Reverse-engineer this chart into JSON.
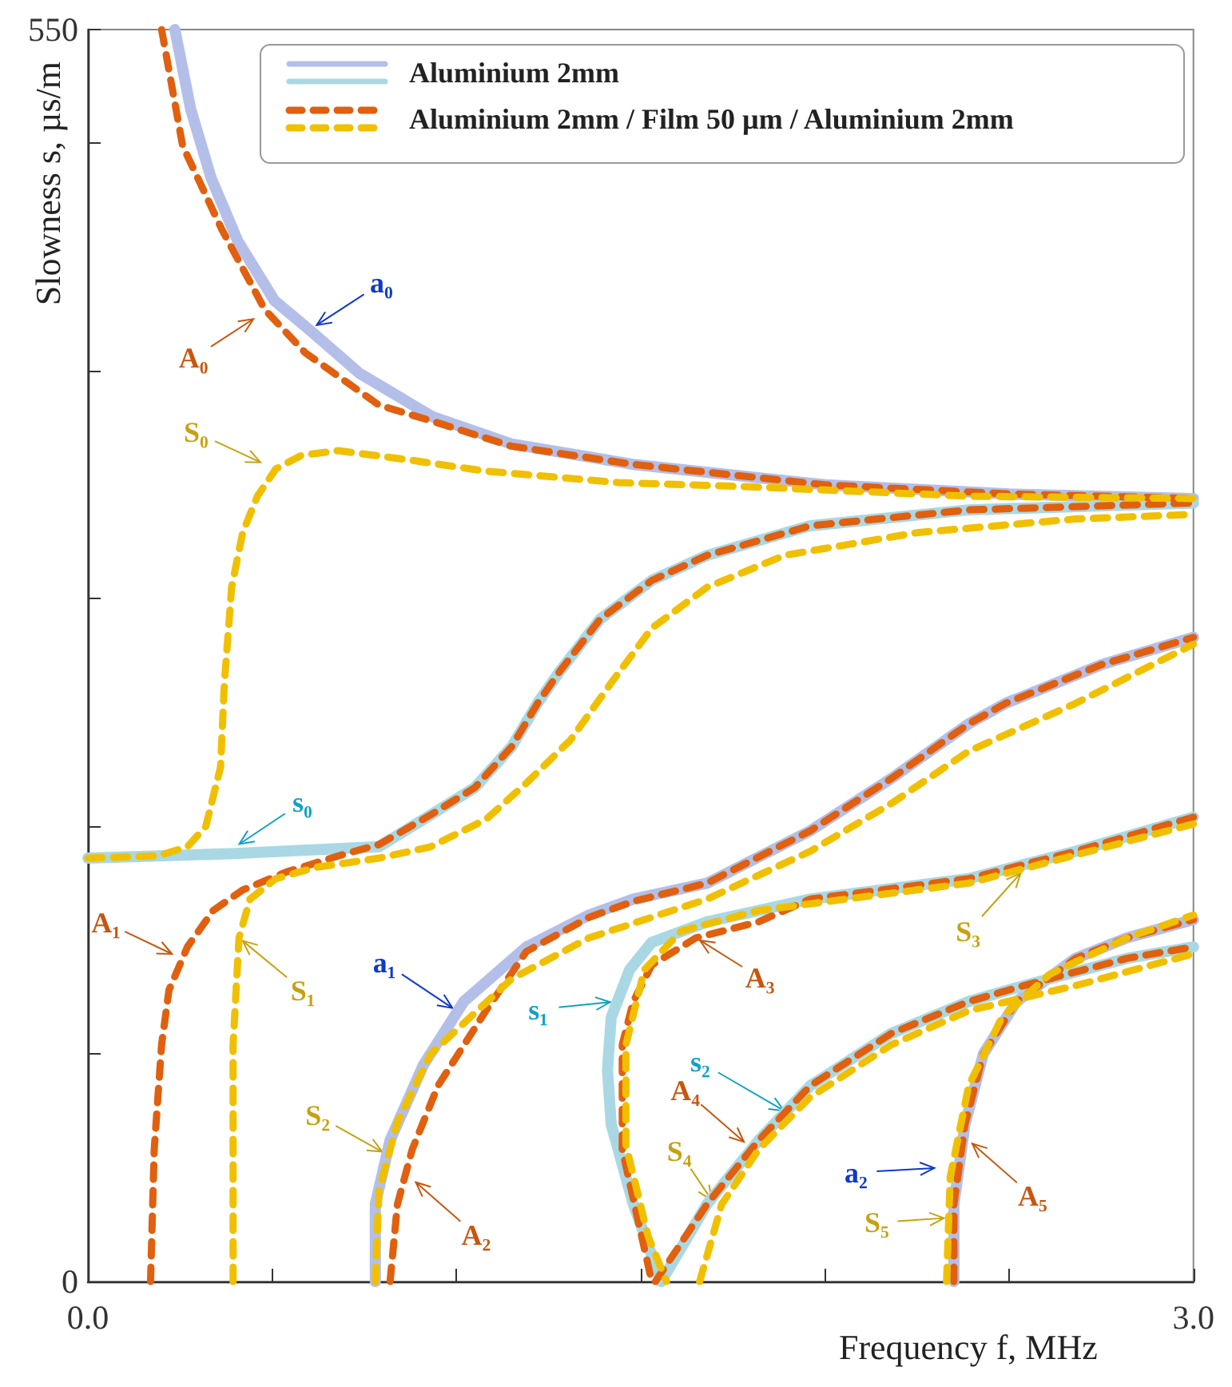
{
  "chart_data": {
    "type": "line",
    "xlabel": "Frequency f, MHz",
    "ylabel": "Slowness s, µs/m",
    "xlim": [
      0,
      3
    ],
    "ylim": [
      0,
      550
    ],
    "xticks": [
      {
        "value": 0,
        "label": "0.0"
      },
      {
        "value": 0.5,
        "label": null
      },
      {
        "value": 1,
        "label": null
      },
      {
        "value": 1.5,
        "label": null
      },
      {
        "value": 2,
        "label": null
      },
      {
        "value": 2.5,
        "label": null
      },
      {
        "value": 3,
        "label": "3.0"
      }
    ],
    "yticks": [
      0,
      {
        "value": 100,
        "label": null
      },
      {
        "value": 200,
        "label": null
      },
      {
        "value": 300,
        "label": null
      },
      {
        "value": 400,
        "label": null
      },
      {
        "value": 500,
        "label": null
      },
      550
    ],
    "grid": false,
    "legend": "top right",
    "marker": "none",
    "series": [
      {
        "name": "Aluminium 2mm",
        "color": "#b3bfe8",
        "line_style": "solid",
        "x": [
          0.236,
          0.279,
          0.334,
          0.407,
          0.506,
          0.609,
          0.737,
          0.934,
          1.149,
          1.479,
          2.0,
          2.5,
          3.0,
          null,
          0.78,
          0.78,
          0.82,
          0.91,
          1.02,
          1.19,
          1.36,
          1.48,
          1.68,
          1.96,
          2.18,
          2.39,
          2.49,
          2.75,
          3.0,
          null,
          2.35,
          2.35,
          2.38,
          2.43,
          2.52,
          2.68,
          2.82,
          3.0
        ],
        "values": [
          550,
          515,
          485,
          457,
          431,
          417,
          399,
          380,
          368,
          359,
          350,
          346,
          344,
          null,
          0,
          34,
          62,
          95,
          123,
          147,
          161,
          168,
          175,
          198,
          221,
          245,
          254,
          271,
          283,
          null,
          0,
          34,
          69,
          100,
          123,
          142,
          151,
          159
        ]
      },
      {
        "color": "#a9d8e4",
        "line_style": "solid",
        "x": [
          0,
          0.4,
          0.79,
          0.93,
          1.05,
          1.15,
          1.22,
          1.28,
          1.39,
          1.53,
          1.68,
          1.96,
          2.39,
          3.0,
          null,
          3.0,
          2.68,
          2.39,
          1.96,
          1.68,
          1.53,
          1.47,
          1.42,
          1.41,
          1.42,
          1.48,
          1.556,
          1.68,
          1.82,
          1.96,
          2.18,
          2.39,
          2.54,
          2.82,
          3.0
        ],
        "values": [
          186,
          188,
          191,
          205,
          217,
          235,
          254,
          268,
          291,
          308,
          319,
          332,
          339,
          342,
          null,
          204,
          189,
          177,
          168,
          158,
          149,
          137,
          116,
          93,
          69,
          34,
          0,
          34,
          62,
          86,
          109,
          123,
          130,
          142,
          147
        ]
      },
      {
        "name": "Aluminium 2mm / Film 50 µm / Aluminium 2mm",
        "color": "#e0600f",
        "line_style": "dashed",
        "x": [
          0.2,
          0.257,
          0.364,
          0.48,
          0.59,
          0.79,
          0.934,
          1.149,
          1.479,
          2.0,
          2.5,
          3.0,
          null,
          0.17,
          0.18,
          0.2,
          0.22,
          0.27,
          0.34,
          0.42,
          0.54,
          0.68,
          0.79,
          0.93,
          1.05,
          1.15,
          1.22,
          1.28,
          1.39,
          1.53,
          1.68,
          1.96,
          2.39,
          3.0,
          null,
          0.82,
          0.84,
          0.88,
          0.95,
          1.08,
          1.19,
          1.36,
          1.48,
          1.68,
          1.96,
          2.18,
          2.39,
          2.49,
          2.75,
          3.0,
          null,
          3.0,
          2.68,
          2.39,
          1.96,
          1.82,
          1.65,
          1.53,
          1.48,
          1.45,
          1.45,
          1.53,
          null,
          1.54,
          1.68,
          1.82,
          1.96,
          2.18,
          2.39,
          2.54,
          2.82,
          3.0,
          null,
          2.35,
          2.35,
          2.38,
          2.43,
          2.52,
          2.68,
          2.82,
          3.0
        ],
        "values": [
          550,
          499,
          462,
          427,
          408,
          385,
          378,
          367,
          359,
          350,
          346,
          344,
          null,
          0,
          58,
          104,
          128,
          147,
          163,
          172,
          180,
          187,
          192,
          205,
          217,
          235,
          254,
          268,
          291,
          308,
          319,
          332,
          339,
          342,
          null,
          0,
          34,
          58,
          86,
          119,
          145,
          160,
          167,
          175,
          198,
          221,
          245,
          254,
          271,
          283,
          null,
          204,
          189,
          177,
          168,
          158,
          151,
          139,
          123,
          104,
          58,
          0,
          null,
          0,
          34,
          62,
          86,
          109,
          123,
          130,
          142,
          147,
          null,
          0,
          34,
          69,
          100,
          123,
          142,
          151,
          159
        ]
      },
      {
        "color": "#f0c000",
        "line_style": "dashed",
        "x": [
          0,
          0.19,
          0.27,
          0.32,
          0.36,
          0.37,
          0.39,
          0.42,
          0.46,
          0.51,
          0.58,
          0.68,
          0.87,
          1.08,
          1.44,
          1.82,
          2.39,
          3.0,
          null,
          0.394,
          0.394,
          0.41,
          0.44,
          0.51,
          0.62,
          0.79,
          0.93,
          1.08,
          1.19,
          1.31,
          1.42,
          1.53,
          1.68,
          1.89,
          2.25,
          2.68,
          3.0,
          null,
          0.78,
          0.79,
          0.84,
          0.93,
          1.15,
          1.36,
          1.68,
          1.96,
          2.18,
          2.39,
          2.68,
          3.0,
          null,
          3.0,
          2.39,
          1.82,
          1.61,
          1.51,
          1.46,
          1.46,
          1.52,
          1.57,
          null,
          1.66,
          1.72,
          1.82,
          1.96,
          2.18,
          2.39,
          2.68,
          3.0,
          null,
          2.33,
          2.34,
          2.39,
          2.48,
          2.61,
          2.82,
          3.0
        ],
        "values": [
          186,
          187,
          191,
          200,
          226,
          262,
          305,
          329,
          345,
          357,
          363,
          365,
          361,
          356,
          351,
          349,
          345,
          344,
          null,
          0,
          104,
          151,
          168,
          177,
          182,
          186,
          191,
          203,
          219,
          238,
          263,
          287,
          305,
          319,
          329,
          335,
          337,
          null,
          0,
          40,
          70,
          100,
          133,
          151,
          168,
          189,
          210,
          233,
          254,
          280,
          null,
          201,
          175,
          163,
          154,
          137,
          104,
          60,
          20,
          0,
          null,
          0,
          34,
          58,
          81,
          104,
          119,
          130,
          144,
          null,
          0,
          46,
          86,
          116,
          135,
          151,
          161
        ]
      }
    ],
    "annotations": [
      {
        "text": "a₀",
        "x": 0.61,
        "y": 419
      },
      {
        "text": "A₀",
        "x": 0.46,
        "y": 424
      },
      {
        "text": "S₀",
        "x": 0.48,
        "y": 359
      },
      {
        "text": "s₀",
        "x": 0.4,
        "y": 191
      },
      {
        "text": "A₁",
        "x": 0.24,
        "y": 143
      },
      {
        "text": "S₁",
        "x": 0.41,
        "y": 151
      },
      {
        "text": "a₁",
        "x": 1.0,
        "y": 119
      },
      {
        "text": "s₁",
        "x": 1.43,
        "y": 123
      },
      {
        "text": "A₃",
        "x": 1.65,
        "y": 151
      },
      {
        "text": "S₃",
        "x": 2.54,
        "y": 181
      },
      {
        "text": "S₂",
        "x": 0.81,
        "y": 56
      },
      {
        "text": "A₂",
        "x": 0.88,
        "y": 45
      },
      {
        "text": "s₂",
        "x": 1.9,
        "y": 74
      },
      {
        "text": "A₄",
        "x": 1.79,
        "y": 60
      },
      {
        "text": "S₄",
        "x": 1.7,
        "y": 34
      },
      {
        "text": "a₂",
        "x": 2.31,
        "y": 50
      },
      {
        "text": "S₅",
        "x": 2.336,
        "y": 28
      },
      {
        "text": "A₅",
        "x": 2.39,
        "y": 62
      }
    ]
  }
}
